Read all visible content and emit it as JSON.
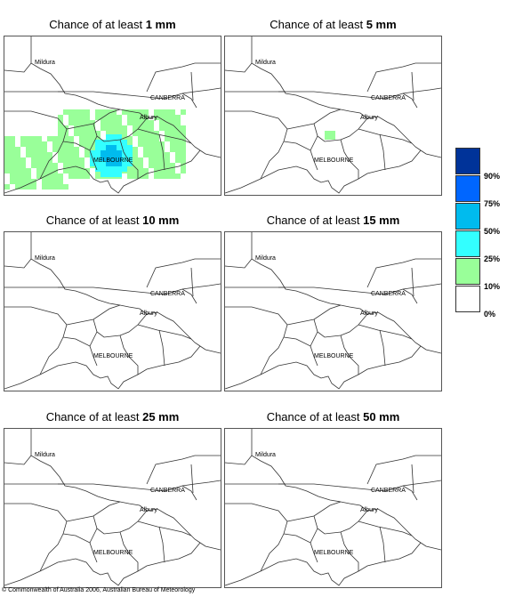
{
  "panels": [
    {
      "title_prefix": "Chance of at least",
      "amount": "1 mm",
      "shading": "heavy"
    },
    {
      "title_prefix": "Chance of at least",
      "amount": "5 mm",
      "shading": "small"
    },
    {
      "title_prefix": "Chance of at least",
      "amount": "10 mm",
      "shading": "none"
    },
    {
      "title_prefix": "Chance of at least",
      "amount": "15 mm",
      "shading": "none"
    },
    {
      "title_prefix": "Chance of at least",
      "amount": "25 mm",
      "shading": "none"
    },
    {
      "title_prefix": "Chance of at least",
      "amount": "50 mm",
      "shading": "none"
    }
  ],
  "cities": {
    "mildura": "Mildura",
    "canberra": "CANBERRA",
    "albury": "Albury",
    "melbourne": "MELBOURNE"
  },
  "legend": {
    "colors": [
      "#003399",
      "#0066ff",
      "#00bbee",
      "#33ffff",
      "#99ff99",
      "#ffffff"
    ],
    "labels": [
      "90%",
      "75%",
      "50%",
      "25%",
      "10%",
      "0%"
    ]
  },
  "copyright": "© Commonwealth of Australia 2006, Australian Bureau of Meteorology"
}
